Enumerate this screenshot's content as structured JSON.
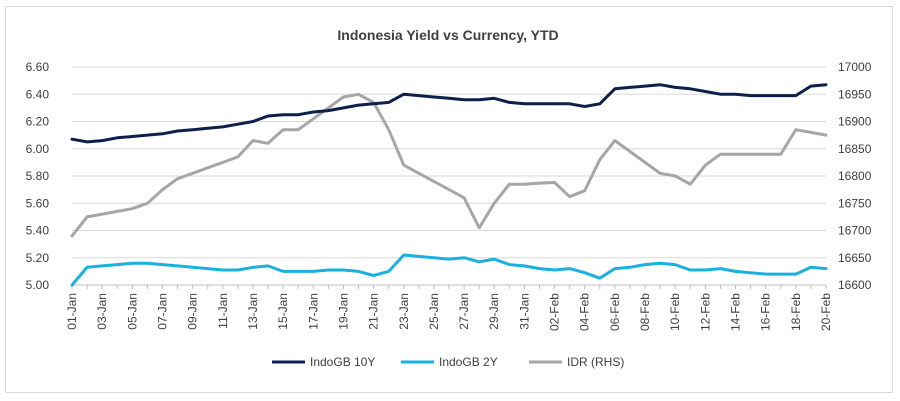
{
  "chart_data": {
    "type": "line",
    "title": "Indonesia Yield vs Currency, YTD",
    "xlabel": "",
    "ylabel": "",
    "ylabel_right": "",
    "ylim": [
      5.0,
      6.6
    ],
    "ylim_right": [
      16600,
      17000
    ],
    "y_ticks": [
      "5.00",
      "5.20",
      "5.40",
      "5.60",
      "5.80",
      "6.00",
      "6.20",
      "6.40",
      "6.60"
    ],
    "y_ticks_right": [
      "16600",
      "16650",
      "16700",
      "16750",
      "16800",
      "16850",
      "16900",
      "16950",
      "17000"
    ],
    "x": [
      "01-Jan",
      "02-Jan",
      "03-Jan",
      "04-Jan",
      "05-Jan",
      "06-Jan",
      "07-Jan",
      "08-Jan",
      "09-Jan",
      "10-Jan",
      "11-Jan",
      "12-Jan",
      "13-Jan",
      "14-Jan",
      "15-Jan",
      "16-Jan",
      "17-Jan",
      "18-Jan",
      "19-Jan",
      "20-Jan",
      "21-Jan",
      "22-Jan",
      "23-Jan",
      "24-Jan",
      "25-Jan",
      "26-Jan",
      "27-Jan",
      "28-Jan",
      "29-Jan",
      "30-Jan",
      "31-Jan",
      "01-Feb",
      "02-Feb",
      "03-Feb",
      "04-Feb",
      "05-Feb",
      "06-Feb",
      "07-Feb",
      "08-Feb",
      "09-Feb",
      "10-Feb",
      "11-Feb",
      "12-Feb",
      "13-Feb",
      "14-Feb",
      "15-Feb",
      "16-Feb",
      "17-Feb",
      "18-Feb",
      "19-Feb",
      "20-Feb"
    ],
    "x_tick_labels": [
      "01-Jan",
      "03-Jan",
      "05-Jan",
      "07-Jan",
      "09-Jan",
      "11-Jan",
      "13-Jan",
      "15-Jan",
      "17-Jan",
      "19-Jan",
      "21-Jan",
      "23-Jan",
      "25-Jan",
      "27-Jan",
      "29-Jan",
      "31-Jan",
      "02-Feb",
      "04-Feb",
      "06-Feb",
      "08-Feb",
      "10-Feb",
      "12-Feb",
      "14-Feb",
      "16-Feb",
      "18-Feb",
      "20-Feb"
    ],
    "legend_position": "bottom",
    "series": [
      {
        "name": "IndoGB 10Y",
        "axis": "left",
        "color": "#0d1f4d",
        "values": [
          6.07,
          6.05,
          6.06,
          6.08,
          6.09,
          6.1,
          6.11,
          6.13,
          6.14,
          6.15,
          6.16,
          6.18,
          6.2,
          6.24,
          6.25,
          6.25,
          6.27,
          6.28,
          6.3,
          6.32,
          6.33,
          6.34,
          6.4,
          6.39,
          6.38,
          6.37,
          6.36,
          6.36,
          6.37,
          6.34,
          6.33,
          6.33,
          6.33,
          6.33,
          6.31,
          6.33,
          6.44,
          6.45,
          6.46,
          6.47,
          6.45,
          6.44,
          6.42,
          6.4,
          6.4,
          6.39,
          6.39,
          6.39,
          6.39,
          6.46,
          6.47
        ]
      },
      {
        "name": "IndoGB 2Y",
        "axis": "left",
        "color": "#1ab0e0",
        "values": [
          5.0,
          5.13,
          5.14,
          5.15,
          5.16,
          5.16,
          5.15,
          5.14,
          5.13,
          5.12,
          5.11,
          5.11,
          5.13,
          5.14,
          5.1,
          5.1,
          5.1,
          5.11,
          5.11,
          5.1,
          5.07,
          5.1,
          5.22,
          5.21,
          5.2,
          5.19,
          5.2,
          5.17,
          5.19,
          5.15,
          5.14,
          5.12,
          5.11,
          5.12,
          5.09,
          5.05,
          5.12,
          5.13,
          5.15,
          5.16,
          5.15,
          5.11,
          5.11,
          5.12,
          5.1,
          5.09,
          5.08,
          5.08,
          5.08,
          5.13,
          5.12
        ]
      },
      {
        "name": "IDR (RHS)",
        "axis": "right",
        "color": "#a6a6a6",
        "values": [
          16690,
          16725,
          16730,
          16735,
          16740,
          16750,
          16775,
          16795,
          16805,
          16815,
          16825,
          16835,
          16865,
          16860,
          16885,
          16885,
          16905,
          16925,
          16945,
          16950,
          16935,
          16885,
          16820,
          16805,
          16790,
          16775,
          16760,
          16705,
          16750,
          16785,
          16785,
          16787,
          16788,
          16762,
          16773,
          16830,
          16865,
          16845,
          16825,
          16805,
          16800,
          16785,
          16820,
          16840,
          16840,
          16840,
          16840,
          16840,
          16885,
          16880,
          16875
        ]
      }
    ]
  }
}
